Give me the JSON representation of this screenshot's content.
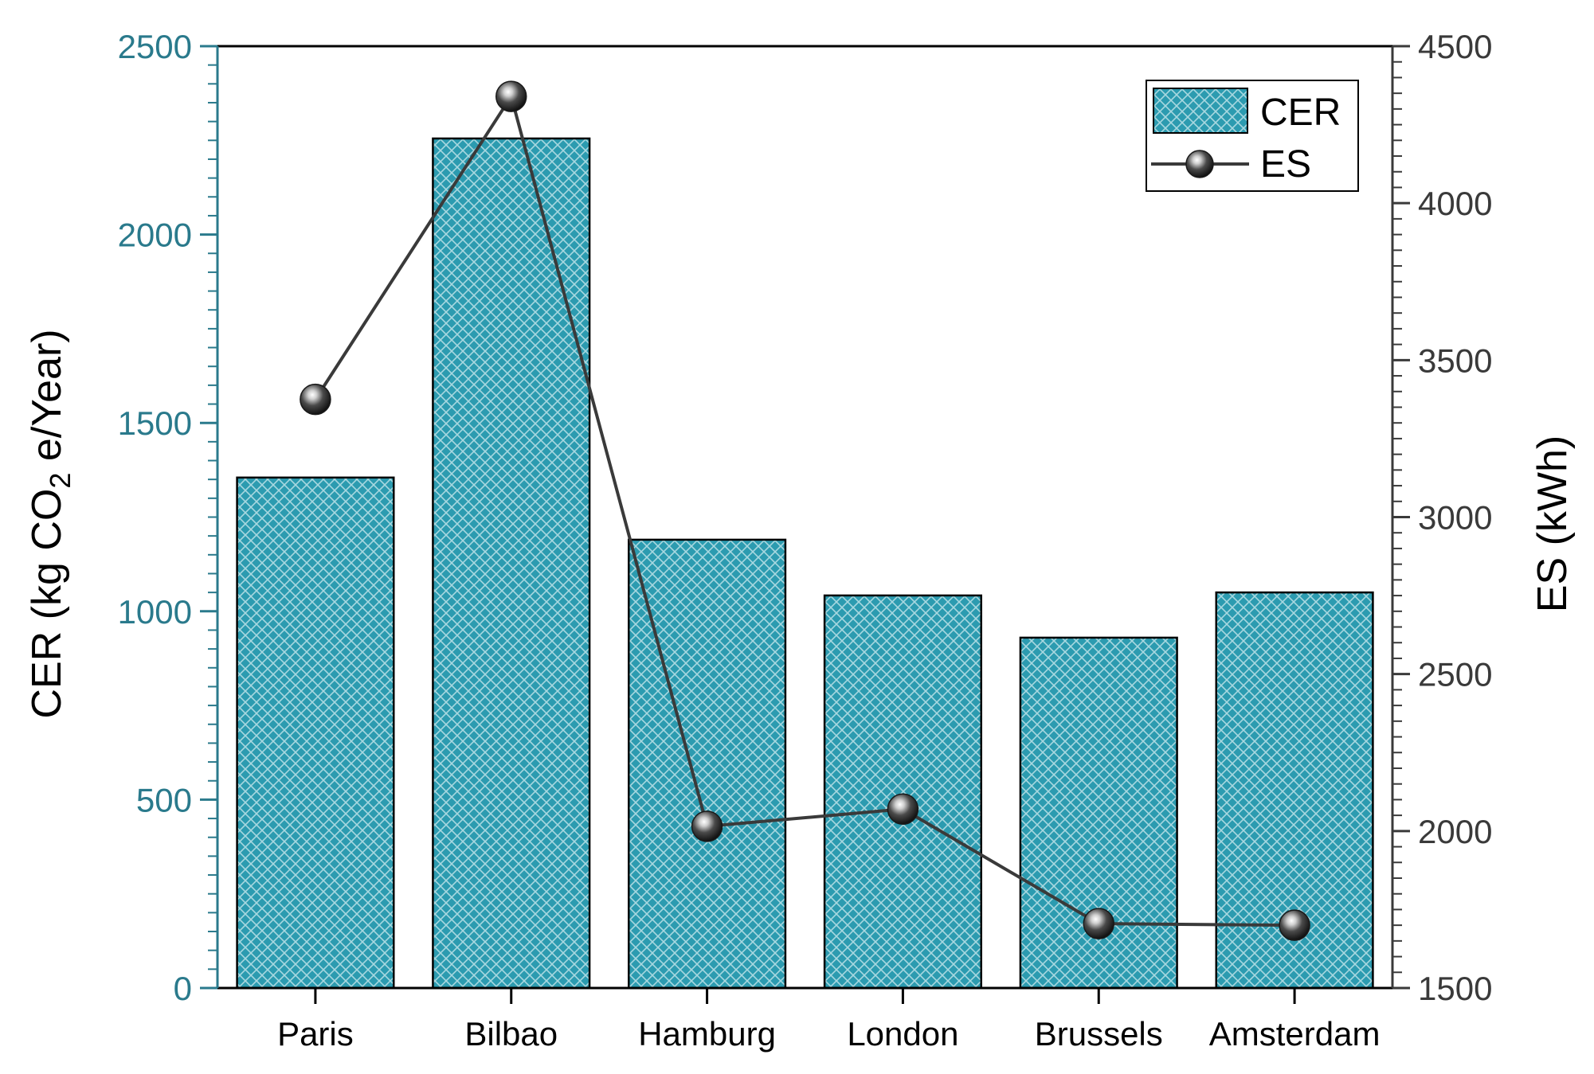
{
  "chart_data": {
    "type": "bar",
    "categories": [
      "Paris",
      "Bilbao",
      "Hamburg",
      "London",
      "Brussels",
      "Amsterdam"
    ],
    "series": [
      {
        "name": "CER",
        "type": "bar",
        "axis": "left",
        "values": [
          1355,
          2255,
          1190,
          1042,
          930,
          1050
        ],
        "color": "#2c9bb0",
        "pattern": "crosshatch"
      },
      {
        "name": "ES",
        "type": "line",
        "axis": "right",
        "values": [
          3375,
          4340,
          2015,
          2070,
          1705,
          1700
        ],
        "color": "#3a3a3a",
        "marker": "sphere"
      }
    ],
    "left_axis": {
      "label_main": "CER (kg CO",
      "label_sub": "2",
      "label_tail": " e/Year)",
      "min": 0,
      "max": 2500,
      "ticks": [
        "0",
        "500",
        "1000",
        "1500",
        "2000",
        "2500"
      ],
      "color": "#2a7a8c"
    },
    "right_axis": {
      "label": "ES (kWh)",
      "min": 1500,
      "max": 4500,
      "ticks": [
        "1500",
        "2000",
        "2500",
        "3000",
        "3500",
        "4000",
        "4500"
      ],
      "color": "#3a3a3a"
    },
    "legend": {
      "position": "top-right",
      "items": [
        "CER",
        "ES"
      ]
    },
    "grid": false
  }
}
